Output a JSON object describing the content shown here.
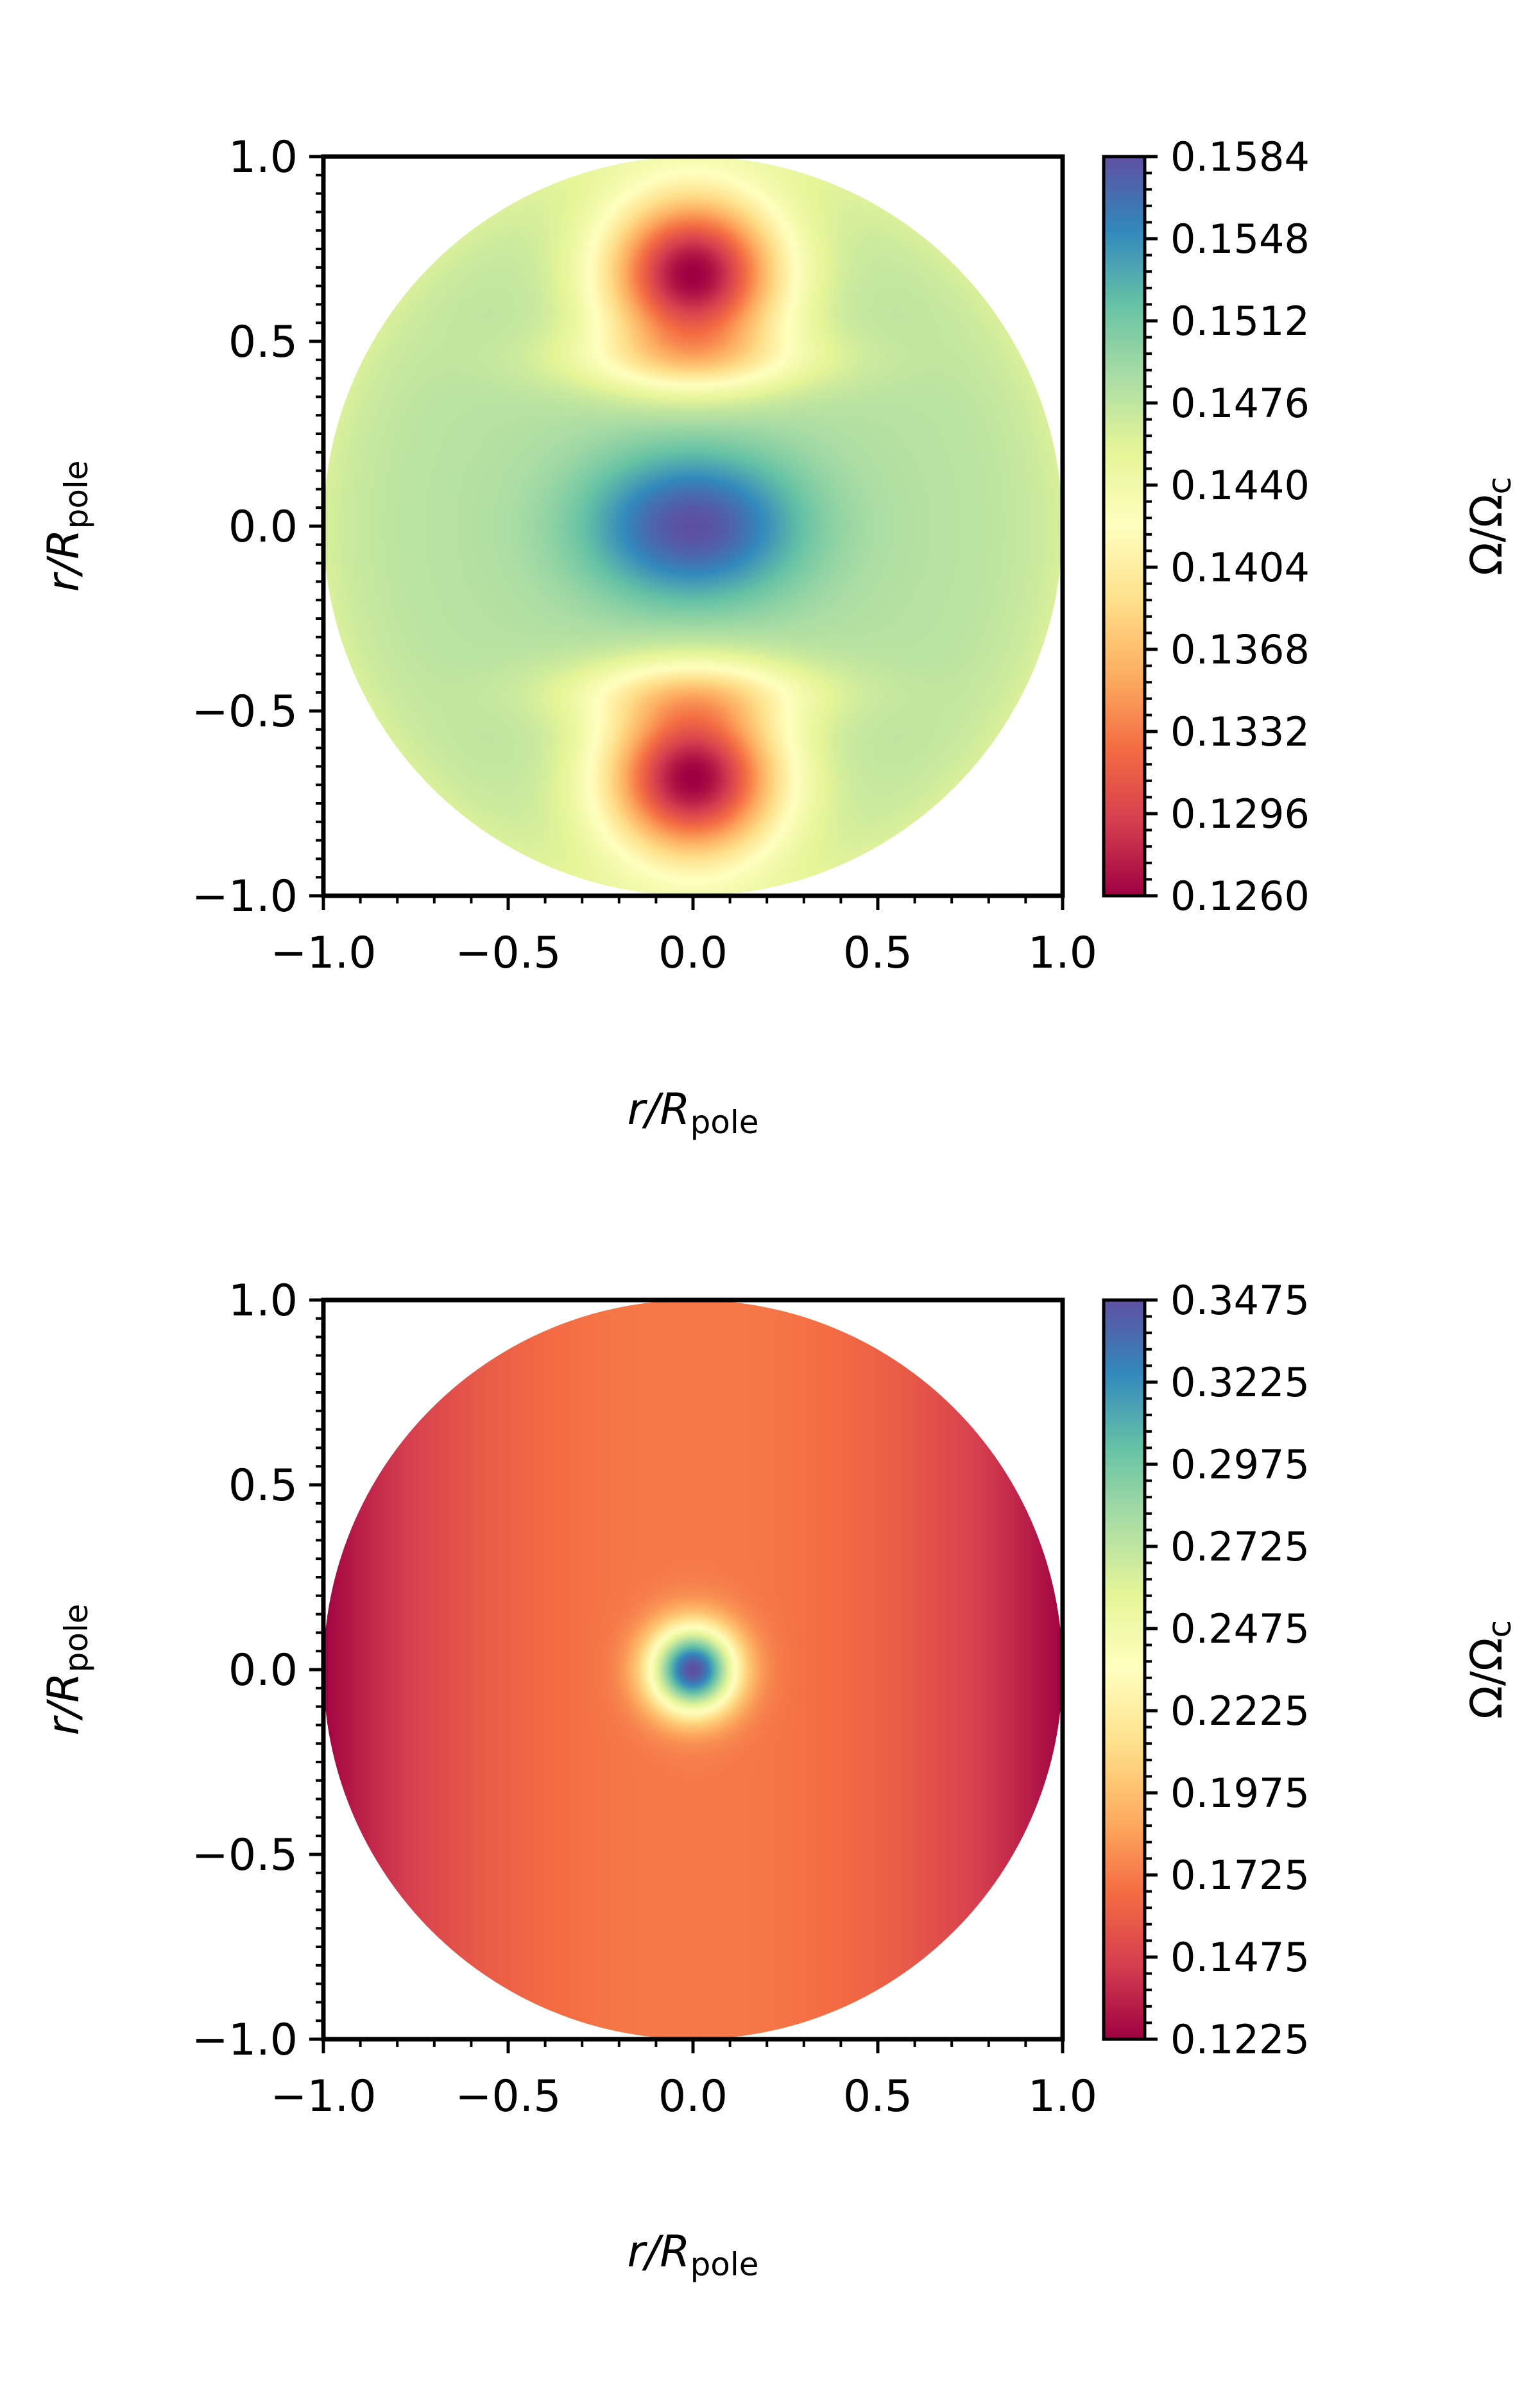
{
  "colors": {
    "cmap": [
      "#9e0142",
      "#d53e4f",
      "#f46d43",
      "#fdae61",
      "#fee08b",
      "#ffffbf",
      "#e6f598",
      "#abdda4",
      "#66c2a5",
      "#3288bd",
      "#5e4fa2"
    ],
    "axis": "#000000",
    "background": "#ffffff"
  },
  "chart_data": [
    {
      "type": "heatmap",
      "subtype": "polar-disk-contour",
      "title": "",
      "xlabel_italic": "r/R",
      "xlabel_sub": "pole",
      "ylabel_italic": "r/R",
      "ylabel_sub": "pole",
      "xlim": [
        -1.0,
        1.0
      ],
      "ylim": [
        -1.0,
        1.0
      ],
      "xticks": [
        "−1.0",
        "−0.5",
        "0.0",
        "0.5",
        "1.0"
      ],
      "yticks": [
        "−1.0",
        "−0.5",
        "0.0",
        "0.5",
        "1.0"
      ],
      "xtick_values": [
        -1.0,
        -0.5,
        0.0,
        0.5,
        1.0
      ],
      "ytick_values": [
        -1.0,
        -0.5,
        0.0,
        0.5,
        1.0
      ],
      "colorbar": {
        "label_main": "Ω/Ω",
        "label_sub": "c",
        "min": 0.126,
        "max": 0.1584,
        "ticks": [
          "0.1260",
          "0.1296",
          "0.1332",
          "0.1368",
          "0.1404",
          "0.1440",
          "0.1476",
          "0.1512",
          "0.1548",
          "0.1584"
        ],
        "tick_values": [
          0.126,
          0.1296,
          0.1332,
          0.1368,
          0.1404,
          0.144,
          0.1476,
          0.1512,
          0.1548,
          0.1584
        ]
      },
      "field_features": [
        {
          "feature": "central equatorial maximum",
          "x": 0.0,
          "y": 0.0,
          "value": 0.1584
        },
        {
          "feature": "upper minimum",
          "x": 0.0,
          "y": 0.68,
          "value": 0.126
        },
        {
          "feature": "lower minimum",
          "x": 0.0,
          "y": -0.68,
          "value": 0.126
        },
        {
          "feature": "outer envelope",
          "value": 0.148
        }
      ]
    },
    {
      "type": "heatmap",
      "subtype": "polar-disk-contour",
      "title": "",
      "xlabel_italic": "r/R",
      "xlabel_sub": "pole",
      "ylabel_italic": "r/R",
      "ylabel_sub": "pole",
      "xlim": [
        -1.0,
        1.0
      ],
      "ylim": [
        -1.0,
        1.0
      ],
      "xticks": [
        "−1.0",
        "−0.5",
        "0.0",
        "0.5",
        "1.0"
      ],
      "yticks": [
        "−1.0",
        "−0.5",
        "0.0",
        "0.5",
        "1.0"
      ],
      "xtick_values": [
        -1.0,
        -0.5,
        0.0,
        0.5,
        1.0
      ],
      "ytick_values": [
        -1.0,
        -0.5,
        0.0,
        0.5,
        1.0
      ],
      "colorbar": {
        "label_main": "Ω/Ω",
        "label_sub": "c",
        "min": 0.1225,
        "max": 0.3475,
        "ticks": [
          "0.1225",
          "0.1475",
          "0.1725",
          "0.1975",
          "0.2225",
          "0.2475",
          "0.2725",
          "0.2975",
          "0.3225",
          "0.3475"
        ],
        "tick_values": [
          0.1225,
          0.1475,
          0.1725,
          0.1975,
          0.2225,
          0.2475,
          0.2725,
          0.2975,
          0.3225,
          0.3475
        ]
      },
      "field_features": [
        {
          "feature": "central maximum",
          "x": 0.0,
          "y": 0.0,
          "value": 0.3475
        },
        {
          "feature": "polar axis near surface",
          "x": 0.0,
          "y": 1.0,
          "value": 0.17
        },
        {
          "feature": "equatorial surface minimum",
          "x": 1.0,
          "y": 0.0,
          "value": 0.1225
        }
      ]
    }
  ]
}
